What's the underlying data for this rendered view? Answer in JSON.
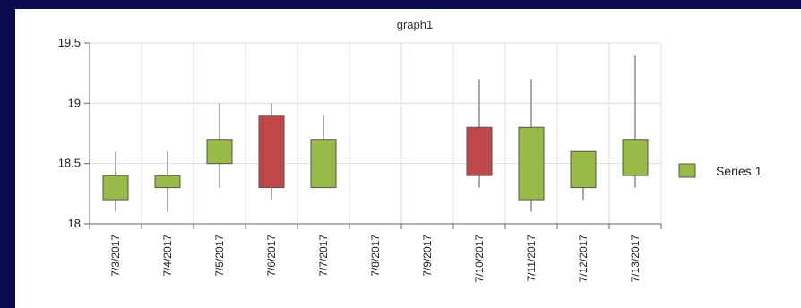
{
  "chart_data": {
    "type": "candlestick",
    "title": "graph1",
    "xlabel": "",
    "ylabel": "",
    "ylim": [
      18,
      19.5
    ],
    "yticks": [
      "18",
      "18.5",
      "19",
      "19.5"
    ],
    "grid": true,
    "legend_position": "right",
    "categories": [
      "7/3/2017",
      "7/4/2017",
      "7/5/2017",
      "7/6/2017",
      "7/7/2017",
      "7/8/2017",
      "7/9/2017",
      "7/10/2017",
      "7/11/2017",
      "7/12/2017",
      "7/13/2017"
    ],
    "series": [
      {
        "name": "Series 1",
        "color_up": "#98bb45",
        "color_down": "#c0484a",
        "points": [
          {
            "x": "7/3/2017",
            "open": 18.2,
            "close": 18.4,
            "high": 18.6,
            "low": 18.1
          },
          {
            "x": "7/4/2017",
            "open": 18.3,
            "close": 18.4,
            "high": 18.6,
            "low": 18.1
          },
          {
            "x": "7/5/2017",
            "open": 18.5,
            "close": 18.7,
            "high": 19.0,
            "low": 18.3
          },
          {
            "x": "7/6/2017",
            "open": 18.9,
            "close": 18.3,
            "high": 19.0,
            "low": 18.2
          },
          {
            "x": "7/7/2017",
            "open": 18.3,
            "close": 18.7,
            "high": 18.9,
            "low": 18.3
          },
          {
            "x": "7/8/2017",
            "open": null,
            "close": null,
            "high": null,
            "low": null
          },
          {
            "x": "7/9/2017",
            "open": null,
            "close": null,
            "high": null,
            "low": null
          },
          {
            "x": "7/10/2017",
            "open": 18.8,
            "close": 18.4,
            "high": 19.2,
            "low": 18.3
          },
          {
            "x": "7/11/2017",
            "open": 18.2,
            "close": 18.8,
            "high": 19.2,
            "low": 18.1
          },
          {
            "x": "7/12/2017",
            "open": 18.3,
            "close": 18.6,
            "high": 18.6,
            "low": 18.2
          },
          {
            "x": "7/13/2017",
            "open": 18.4,
            "close": 18.7,
            "high": 19.4,
            "low": 18.3
          }
        ]
      }
    ]
  }
}
